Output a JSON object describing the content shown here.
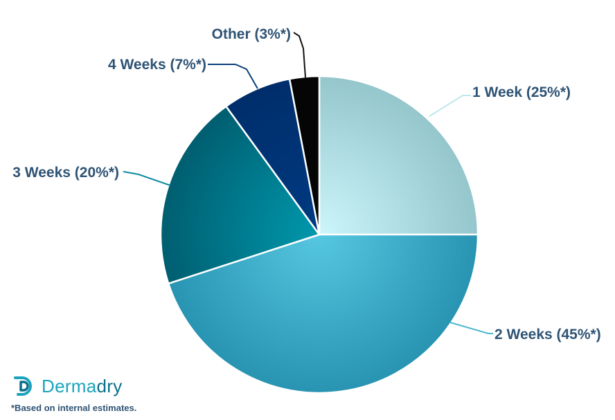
{
  "chart_data": {
    "type": "pie",
    "slices": [
      {
        "label": "1 Week (25%*)",
        "value": 25,
        "color_start": "#ccf6fb",
        "color_end": "#94c6cc"
      },
      {
        "label": "2 Weeks (45%*)",
        "value": 45,
        "color_start": "#56c7e1",
        "color_end": "#2894b2"
      },
      {
        "label": "3 Weeks (20%*)",
        "value": 20,
        "color_start": "#0098ad",
        "color_end": "#005e70"
      },
      {
        "label": "4 Weeks (7%*)",
        "value": 7,
        "color_start": "#003a82",
        "color_end": "#002e6b"
      },
      {
        "label": "Other (3%*)",
        "value": 3,
        "color_start": "#050505",
        "color_end": "#050505"
      }
    ]
  },
  "brand": {
    "name_part1": "Derma",
    "name_part2": "dry"
  },
  "footnote": "*Based on internal estimates.",
  "colors": {
    "label_text": "#2e5374",
    "brand_light": "#1aa3bd",
    "brand_dark": "#0a6f8a"
  }
}
